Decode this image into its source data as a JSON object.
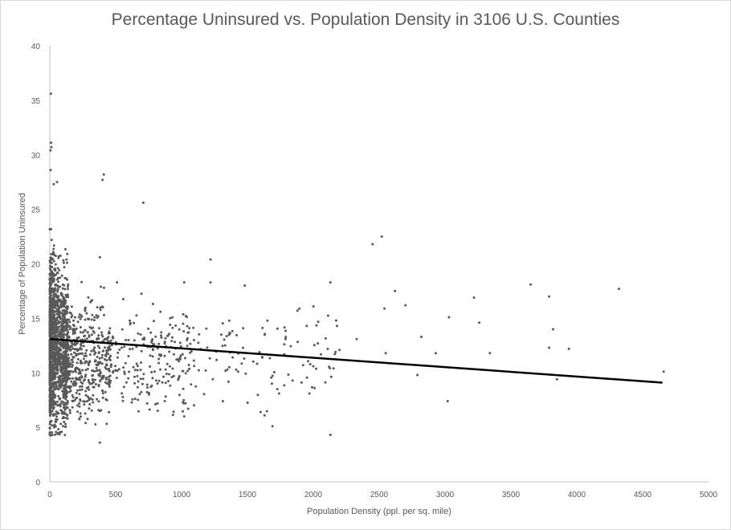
{
  "chart_data": {
    "type": "scatter",
    "title": "Percentage Uninsured vs. Population Density in 3106 U.S. Counties",
    "xlabel": "Population Density (ppl. per sq. mile)",
    "ylabel": "Percentage of Population Uninsured",
    "xlim": [
      0,
      5000
    ],
    "ylim": [
      0,
      40
    ],
    "x_ticks": [
      0,
      500,
      1000,
      1500,
      2000,
      2500,
      3000,
      3500,
      4000,
      4500,
      5000
    ],
    "y_ticks": [
      0,
      5,
      10,
      15,
      20,
      25,
      30,
      35,
      40
    ],
    "x_tick_labels": [
      "0",
      "500",
      "1000",
      "1500",
      "2000",
      "2500",
      "3000",
      "3500",
      "4000",
      "4500",
      "5000"
    ],
    "y_tick_labels": [
      "0",
      "5",
      "10",
      "15",
      "20",
      "25",
      "30",
      "35",
      "40"
    ],
    "grid": false,
    "legend": "none",
    "point_color": "#595959",
    "trendline_color": "#000000",
    "trendline": {
      "x": [
        0,
        4650
      ],
      "y": [
        13.1,
        9.1
      ]
    },
    "highlighted_points": [
      {
        "x": 8,
        "y": 35.6
      },
      {
        "x": 10,
        "y": 31.1
      },
      {
        "x": 12,
        "y": 30.7
      },
      {
        "x": 5,
        "y": 30.4
      },
      {
        "x": 6,
        "y": 28.6
      },
      {
        "x": 55,
        "y": 27.5
      },
      {
        "x": 30,
        "y": 27.3
      },
      {
        "x": 410,
        "y": 28.2
      },
      {
        "x": 400,
        "y": 27.7
      },
      {
        "x": 710,
        "y": 25.6
      },
      {
        "x": 380,
        "y": 20.6
      },
      {
        "x": 2450,
        "y": 21.8
      },
      {
        "x": 2520,
        "y": 22.5
      },
      {
        "x": 1220,
        "y": 20.4
      },
      {
        "x": 2130,
        "y": 18.3
      },
      {
        "x": 1480,
        "y": 18.0
      },
      {
        "x": 1220,
        "y": 18.3
      },
      {
        "x": 1020,
        "y": 18.3
      },
      {
        "x": 510,
        "y": 18.3
      },
      {
        "x": 3650,
        "y": 18.1
      },
      {
        "x": 4320,
        "y": 17.7
      },
      {
        "x": 2620,
        "y": 17.5
      },
      {
        "x": 3790,
        "y": 17.0
      },
      {
        "x": 3220,
        "y": 16.9
      },
      {
        "x": 2700,
        "y": 16.2
      },
      {
        "x": 1880,
        "y": 15.7
      },
      {
        "x": 2540,
        "y": 15.9
      },
      {
        "x": 3030,
        "y": 15.1
      },
      {
        "x": 3260,
        "y": 14.6
      },
      {
        "x": 3820,
        "y": 14.0
      },
      {
        "x": 2180,
        "y": 14.3
      },
      {
        "x": 1950,
        "y": 14.3
      },
      {
        "x": 2820,
        "y": 13.3
      },
      {
        "x": 2330,
        "y": 13.1
      },
      {
        "x": 3790,
        "y": 12.3
      },
      {
        "x": 3940,
        "y": 12.2
      },
      {
        "x": 2930,
        "y": 11.8
      },
      {
        "x": 3340,
        "y": 11.8
      },
      {
        "x": 2550,
        "y": 11.8
      },
      {
        "x": 2790,
        "y": 9.8
      },
      {
        "x": 3850,
        "y": 9.4
      },
      {
        "x": 4660,
        "y": 10.1
      },
      {
        "x": 3020,
        "y": 7.4
      },
      {
        "x": 2130,
        "y": 4.3
      },
      {
        "x": 1020,
        "y": 6.0
      },
      {
        "x": 1690,
        "y": 5.1
      },
      {
        "x": 1600,
        "y": 6.4
      },
      {
        "x": 1740,
        "y": 8.1
      },
      {
        "x": 1970,
        "y": 8.1
      },
      {
        "x": 2010,
        "y": 8.6
      },
      {
        "x": 380,
        "y": 3.6
      },
      {
        "x": 20,
        "y": 4.3
      },
      {
        "x": 1050,
        "y": 6.7
      },
      {
        "x": 1630,
        "y": 6.1
      },
      {
        "x": 2000,
        "y": 10.6
      },
      {
        "x": 1780,
        "y": 11.7
      }
    ]
  }
}
